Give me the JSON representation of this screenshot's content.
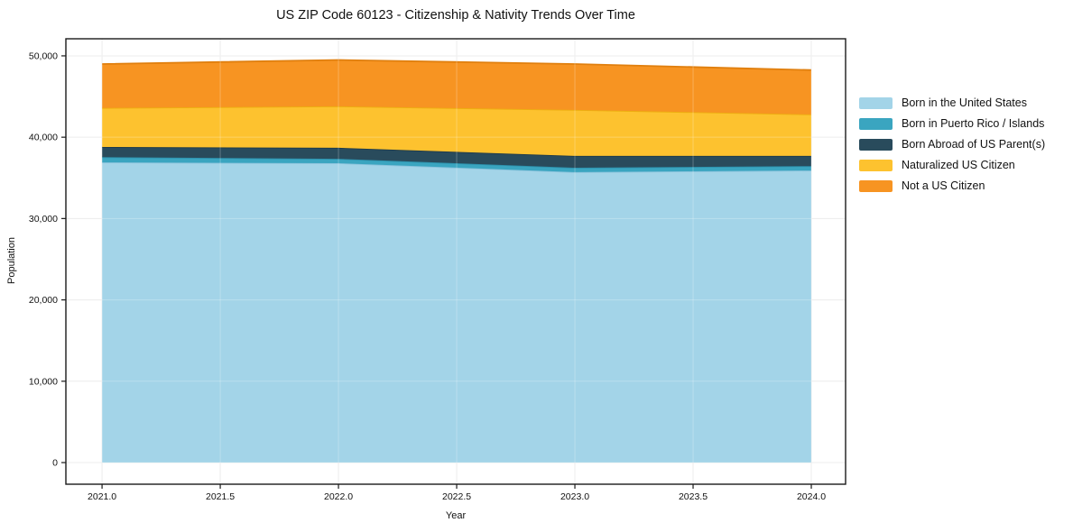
{
  "figure": {
    "title": "US ZIP Code 60123 - Citizenship & Nativity Trends Over Time",
    "xlabel": "Year",
    "ylabel": "Population"
  },
  "chart_data": {
    "type": "area",
    "stacked": true,
    "title": "US ZIP Code 60123 - Citizenship & Nativity Trends Over Time",
    "xlabel": "Year",
    "ylabel": "Population",
    "x": [
      2021,
      2022,
      2023,
      2024
    ],
    "series": [
      {
        "name": "Born in the United States",
        "color": "#a3d4e8",
        "edge": "#8bc3dc",
        "values": [
          36900,
          36800,
          35700,
          35900
        ]
      },
      {
        "name": "Born in Puerto Rico / Islands",
        "color": "#3aa5c0",
        "edge": "#2c90ab",
        "values": [
          650,
          550,
          550,
          550
        ]
      },
      {
        "name": "Born Abroad of US Parent(s)",
        "color": "#294b5c",
        "edge": "#1e3a49",
        "values": [
          1250,
          1350,
          1450,
          1250
        ]
      },
      {
        "name": "Naturalized US Citizen",
        "color": "#fdc22f",
        "edge": "#edae10",
        "values": [
          4800,
          5100,
          5650,
          5100
        ]
      },
      {
        "name": "Not a US Citizen",
        "color": "#f79422",
        "edge": "#e07f0e",
        "values": [
          5400,
          5700,
          5650,
          5450
        ]
      }
    ],
    "stack_totals": [
      49000,
      49500,
      49000,
      48250
    ],
    "xticks": [
      2021.0,
      2021.5,
      2022.0,
      2022.5,
      2023.0,
      2023.5,
      2024.0
    ],
    "xtick_labels": [
      "2021.0",
      "2021.5",
      "2022.0",
      "2022.5",
      "2023.0",
      "2023.5",
      "2024.0"
    ],
    "yticks": [
      0,
      10000,
      20000,
      30000,
      40000,
      50000
    ],
    "ytick_labels": [
      "0",
      "10,000",
      "20,000",
      "30,000",
      "40,000",
      "50,000"
    ],
    "xlim": [
      2020.847,
      2024.145
    ],
    "ylim": [
      -2660,
      52100
    ],
    "grid": true,
    "grid_color": "#e7e7e7",
    "spine_color": "#1a1a1a",
    "legend_position": "right"
  }
}
